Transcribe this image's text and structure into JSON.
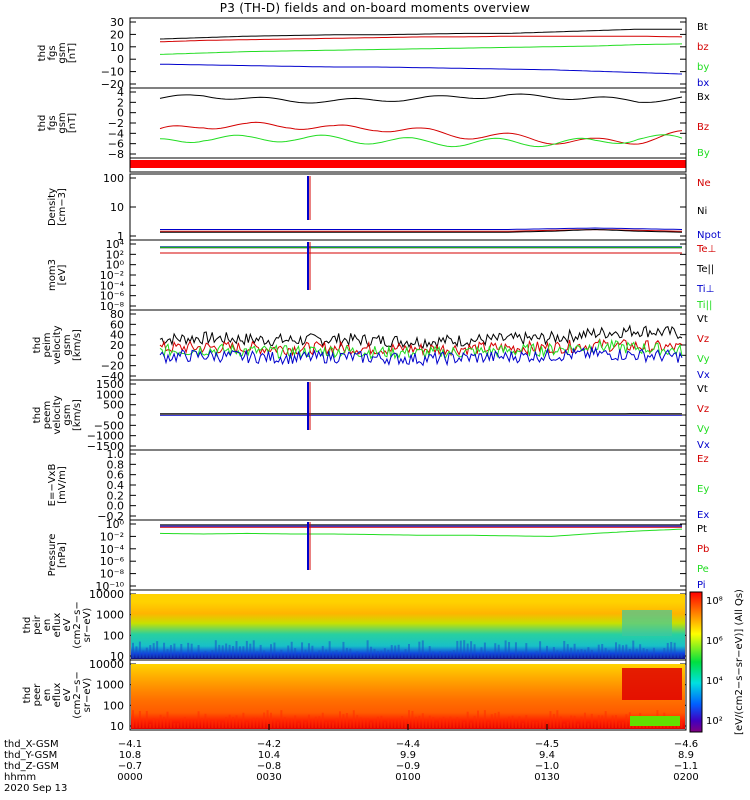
{
  "title": "P3 (TH-D) fields and on-board moments overview",
  "colors": {
    "black": "#000000",
    "red": "#d40000",
    "green": "#22dd22",
    "blue": "#0000cc"
  },
  "chart_data": {
    "type": "line",
    "time_ticks": [
      "0000",
      "0030",
      "0100",
      "0130",
      "0200"
    ],
    "panels": [
      {
        "name": "fgs-gsm",
        "ylabel": [
          "thd",
          "fgs",
          "gsm",
          "[nT]"
        ],
        "yticks": [
          "30",
          "20",
          "10",
          "0",
          "−10",
          "−20"
        ],
        "legend": [
          {
            "label": "Bt",
            "color": "black"
          },
          {
            "label": "bz",
            "color": "red"
          },
          {
            "label": "by",
            "color": "green"
          },
          {
            "label": "bx",
            "color": "blue"
          }
        ],
        "ylim": [
          -20,
          30
        ],
        "series": [
          {
            "color": "black",
            "values": [
              15,
              16,
              17,
              17.5,
              18,
              18,
              18.5,
              19,
              19,
              20,
              21,
              22,
              22
            ]
          },
          {
            "color": "red",
            "values": [
              13,
              14,
              14.5,
              15,
              15.5,
              16,
              16.5,
              16.5,
              17,
              17,
              17,
              17,
              16.5
            ]
          },
          {
            "color": "green",
            "values": [
              4,
              5,
              6,
              6.5,
              7,
              7.5,
              8,
              8.5,
              9,
              9.5,
              10,
              11,
              11.5
            ]
          },
          {
            "color": "blue",
            "values": [
              -3,
              -3.5,
              -4,
              -4.5,
              -5,
              -5,
              -5.5,
              -6,
              -6.5,
              -7,
              -8,
              -9,
              -10
            ]
          }
        ]
      },
      {
        "name": "fgs-gsm-zoom",
        "ylabel": [
          "thd",
          "fgs",
          "gsm",
          "[nT]"
        ],
        "yticks": [
          "4",
          "2",
          "0",
          "−2",
          "−4",
          "−6",
          "−8"
        ],
        "legend": [
          {
            "label": "Bx",
            "color": "black"
          },
          {
            "label": "Bz",
            "color": "red"
          },
          {
            "label": "By",
            "color": "green"
          }
        ],
        "ylim": [
          -9,
          4.5
        ],
        "series": [
          {
            "color": "black",
            "values": [
              2.5,
              3,
              2.5,
              2,
              2,
              2.2,
              2.5,
              2.8,
              3,
              2.8,
              2.5,
              2,
              2.5
            ]
          },
          {
            "color": "red",
            "values": [
              -4,
              -2.5,
              -3,
              -2.5,
              -3.5,
              -3,
              -4,
              -4.5,
              -5,
              -5.5,
              -6,
              -5.5,
              -4.5
            ]
          },
          {
            "color": "green",
            "values": [
              -6,
              -5,
              -5.5,
              -5,
              -5.5,
              -5.5,
              -6,
              -6,
              -6,
              -6,
              -6,
              -5,
              -5.5
            ]
          }
        ]
      },
      {
        "name": "density",
        "ylabel": [
          "Density",
          "[cm−3]"
        ],
        "yticks": [
          "100",
          "10",
          "1"
        ],
        "legend": [
          {
            "label": "Ne",
            "color": "red"
          },
          {
            "label": "Ni",
            "color": "black"
          },
          {
            "label": "Npot",
            "color": "blue"
          }
        ],
        "log": true,
        "ylim": [
          0.2,
          200
        ],
        "series": [
          {
            "color": "red",
            "values": [
              0.5,
              0.5,
              0.5,
              0.5,
              0.5,
              0.5,
              0.5,
              0.5,
              0.5,
              0.55,
              0.6,
              0.55,
              0.5
            ]
          },
          {
            "color": "black",
            "values": [
              0.45,
              0.45,
              0.45,
              0.45,
              0.45,
              0.45,
              0.45,
              0.45,
              0.45,
              0.5,
              0.6,
              0.5,
              0.45
            ]
          },
          {
            "color": "blue",
            "values": [
              0.6,
              0.6,
              0.6,
              0.6,
              0.6,
              0.6,
              0.6,
              0.6,
              0.6,
              0.65,
              0.7,
              0.65,
              0.6
            ]
          }
        ]
      },
      {
        "name": "temperature",
        "ylabel": [
          "mom3",
          "[eV]"
        ],
        "yticks": [
          "10⁴",
          "10²",
          "10⁰",
          "10⁻²",
          "10⁻⁴",
          "10⁻⁶",
          "10⁻⁸"
        ],
        "legend": [
          {
            "label": "Te⊥",
            "color": "red"
          },
          {
            "label": "Te||",
            "color": "black"
          },
          {
            "label": "Ti⊥",
            "color": "blue"
          },
          {
            "label": "Ti||",
            "color": "green"
          }
        ],
        "ylim": [
          -9,
          4.5
        ],
        "series": [
          {
            "color": "black",
            "values": [
              3,
              3,
              3,
              3,
              3,
              3,
              3,
              3,
              3,
              3,
              3,
              3,
              3
            ]
          },
          {
            "color": "red",
            "values": [
              2,
              2,
              2,
              2,
              2,
              2,
              2,
              2,
              2,
              2,
              2,
              2,
              2
            ]
          },
          {
            "color": "blue",
            "values": [
              3.2,
              3.2,
              3.2,
              3.2,
              3.2,
              3.2,
              3.2,
              3.2,
              3.2,
              3.2,
              3.2,
              3.2,
              3.2
            ]
          },
          {
            "color": "green",
            "values": [
              3.1,
              3.1,
              3.1,
              3.1,
              3.1,
              3.1,
              3.1,
              3.1,
              3.1,
              3.1,
              3.1,
              3.1,
              3.1
            ]
          }
        ]
      },
      {
        "name": "peim-velocity",
        "ylabel": [
          "thd",
          "peim",
          "velocity",
          "gsm",
          "[km/s]"
        ],
        "yticks": [
          "80",
          "60",
          "40",
          "20",
          "0",
          "−20",
          "−40"
        ],
        "legend": [
          {
            "label": "Vt",
            "color": "black"
          },
          {
            "label": "Vz",
            "color": "red"
          },
          {
            "label": "Vy",
            "color": "green"
          },
          {
            "label": "Vx",
            "color": "blue"
          }
        ],
        "ylim": [
          -40,
          80
        ],
        "series": [
          {
            "color": "black",
            "values": [
              30,
              32,
              30,
              28,
              30,
              28,
              26,
              28,
              30,
              32,
              40,
              45,
              40
            ]
          },
          {
            "color": "red",
            "values": [
              15,
              16,
              15,
              14,
              15,
              14,
              13,
              14,
              15,
              16,
              20,
              18,
              15
            ]
          },
          {
            "color": "green",
            "values": [
              10,
              12,
              10,
              8,
              10,
              8,
              6,
              8,
              10,
              12,
              18,
              15,
              10
            ]
          },
          {
            "color": "blue",
            "values": [
              0,
              2,
              0,
              -2,
              0,
              -2,
              -4,
              -2,
              0,
              2,
              5,
              3,
              0
            ]
          }
        ]
      },
      {
        "name": "peem-velocity",
        "ylabel": [
          "thd",
          "peem",
          "velocity",
          "gsm",
          "[km/s]"
        ],
        "yticks": [
          "1500",
          "1000",
          "500",
          "0",
          "−500",
          "−1000",
          "−1500"
        ],
        "legend": [
          {
            "label": "Vt",
            "color": "black"
          },
          {
            "label": "Vz",
            "color": "red"
          },
          {
            "label": "Vy",
            "color": "green"
          },
          {
            "label": "Vx",
            "color": "blue"
          }
        ],
        "ylim": [
          -1500,
          1500
        ],
        "series": [
          {
            "color": "black",
            "values": [
              50,
              50,
              50,
              50,
              50,
              50,
              50,
              50,
              50,
              50,
              50,
              60,
              50
            ]
          },
          {
            "color": "red",
            "values": [
              10,
              10,
              10,
              10,
              10,
              10,
              10,
              10,
              10,
              10,
              10,
              10,
              10
            ]
          },
          {
            "color": "green",
            "values": [
              0,
              0,
              0,
              0,
              0,
              0,
              0,
              0,
              0,
              0,
              0,
              0,
              0
            ]
          },
          {
            "color": "blue",
            "values": [
              -10,
              -10,
              -10,
              -10,
              -10,
              -10,
              -10,
              -10,
              -10,
              -10,
              -10,
              -10,
              -10
            ]
          }
        ]
      },
      {
        "name": "efield",
        "ylabel": [
          "E=−VxB",
          "[mV/m]"
        ],
        "yticks": [
          "1.0",
          "0.8",
          "0.6",
          "0.4",
          "0.2",
          "0.0",
          "−0.2"
        ],
        "legend": [
          {
            "label": "Ez",
            "color": "red"
          },
          {
            "label": "Ey",
            "color": "green"
          },
          {
            "label": "Ex",
            "color": "blue"
          }
        ],
        "ylim": [
          -0.2,
          1.0
        ],
        "series": []
      },
      {
        "name": "pressure",
        "ylabel": [
          "Pressure",
          "[nPa]"
        ],
        "yticks": [
          "10⁰",
          "10⁻²",
          "10⁻⁴",
          "10⁻⁶",
          "10⁻⁸",
          "10⁻¹⁰"
        ],
        "legend": [
          {
            "label": "Pt",
            "color": "black"
          },
          {
            "label": "Pb",
            "color": "red"
          },
          {
            "label": "Pe",
            "color": "green"
          },
          {
            "label": "Pi",
            "color": "blue"
          }
        ],
        "ylim": [
          -10.5,
          1
        ],
        "series": [
          {
            "color": "black",
            "values": [
              0.2,
              0.2,
              0.2,
              0.2,
              0.2,
              0.2,
              0.2,
              0.2,
              0.2,
              0.2,
              0.2,
              0.2,
              0.2
            ]
          },
          {
            "color": "red",
            "values": [
              -0.2,
              -0.2,
              -0.2,
              -0.2,
              -0.2,
              -0.2,
              -0.2,
              -0.2,
              -0.2,
              -0.2,
              -0.2,
              -0.2,
              -0.2
            ]
          },
          {
            "color": "green",
            "values": [
              -1.2,
              -1.3,
              -1.2,
              -1.3,
              -1.3,
              -1.4,
              -1.5,
              -1.5,
              -1.6,
              -1.7,
              -1.2,
              -0.8,
              -0.5
            ]
          },
          {
            "color": "blue",
            "values": [
              0,
              0,
              0,
              0,
              0,
              0,
              0,
              0,
              0,
              0,
              0,
              0,
              0
            ]
          }
        ]
      },
      {
        "name": "peir-spectrogram",
        "ylabel": [
          "thd",
          "peir",
          "en",
          "eflux",
          "eV",
          "(cm2−s−",
          "sr−eV)"
        ],
        "yticks": [
          "10000",
          "1000",
          "100",
          "10"
        ]
      },
      {
        "name": "peer-spectrogram",
        "ylabel": [
          "thd",
          "peer",
          "en",
          "eflux",
          "eV",
          "(cm2−s−",
          "sr−eV)"
        ],
        "yticks": [
          "10000",
          "1000",
          "100",
          "10"
        ]
      }
    ],
    "colorbar": {
      "label": "[eV/(cm2−s−sr−eV)] (All Qs)",
      "ticks": [
        "10⁸",
        "10⁶",
        "10⁴",
        "10²"
      ]
    },
    "x_axis": {
      "rows": [
        {
          "label": "thd_X-GSM",
          "values": [
            "−4.1",
            "−4.2",
            "−4.4",
            "−4.5",
            "−4.6"
          ]
        },
        {
          "label": "thd_Y-GSM",
          "values": [
            "10.8",
            "10.4",
            "9.9",
            "9.4",
            "8.9"
          ]
        },
        {
          "label": "thd_Z-GSM",
          "values": [
            "−0.7",
            "−0.8",
            "−0.9",
            "−1.0",
            "−1.1"
          ]
        },
        {
          "label": "hhmm",
          "values": [
            "0000",
            "0030",
            "0100",
            "0130",
            "0200"
          ]
        }
      ],
      "date": "2020 Sep 13"
    }
  }
}
